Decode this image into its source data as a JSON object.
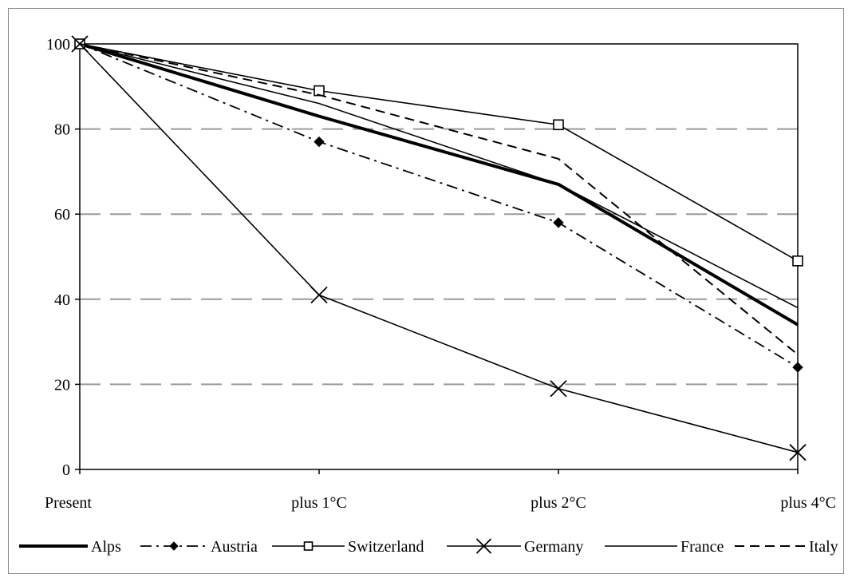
{
  "chart_data": {
    "type": "line",
    "title": "",
    "xlabel": "",
    "ylabel": "",
    "categories": [
      "Present",
      "plus 1°C",
      "plus 2°C",
      "plus 4°C"
    ],
    "ylim": [
      0,
      100
    ],
    "yticks": [
      "0",
      "20",
      "40",
      "60",
      "80",
      "100"
    ],
    "grid": "horizontal dashed",
    "legend_position": "bottom",
    "series": [
      {
        "name": "Alps",
        "values": [
          100,
          83,
          67,
          34
        ],
        "style": "solid-thick",
        "marker": "none",
        "color": "#000000"
      },
      {
        "name": "Austria",
        "values": [
          100,
          77,
          58,
          24
        ],
        "style": "dashdot",
        "marker": "diamond",
        "color": "#000000"
      },
      {
        "name": "Switzerland",
        "values": [
          100,
          89,
          81,
          49
        ],
        "style": "solid",
        "marker": "square",
        "color": "#000000"
      },
      {
        "name": "Germany",
        "values": [
          100,
          41,
          19,
          4
        ],
        "style": "solid",
        "marker": "x",
        "color": "#000000"
      },
      {
        "name": "France",
        "values": [
          100,
          86,
          67,
          38
        ],
        "style": "solid",
        "marker": "none",
        "color": "#000000"
      },
      {
        "name": "Italy",
        "values": [
          100,
          88,
          73,
          27
        ],
        "style": "dashed",
        "marker": "none",
        "color": "#000000"
      }
    ]
  }
}
